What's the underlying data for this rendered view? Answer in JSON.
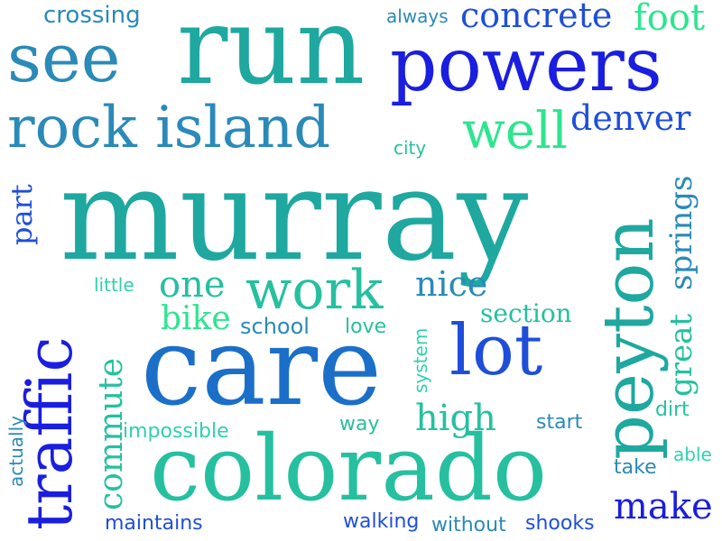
{
  "colors": {
    "deep_blue": "#1a1ee0",
    "royal_blue": "#1f4fd8",
    "mid_blue": "#1b6fc8",
    "steel_blue": "#2a8ab8",
    "teal": "#1ea8a0",
    "sea_green": "#26c0a0",
    "bright_green": "#2ee58f",
    "light_teal": "#2fd0b0"
  },
  "words": [
    {
      "text": "murray",
      "color": "teal"
    },
    {
      "text": "run",
      "color": "teal"
    },
    {
      "text": "care",
      "color": "mid_blue"
    },
    {
      "text": "colorado",
      "color": "sea_green"
    },
    {
      "text": "powers",
      "color": "deep_blue"
    },
    {
      "text": "peyton",
      "color": "teal"
    },
    {
      "text": "traffic",
      "color": "deep_blue"
    },
    {
      "text": "see",
      "color": "steel_blue"
    },
    {
      "text": "rock island",
      "color": "steel_blue"
    },
    {
      "text": "lot",
      "color": "royal_blue"
    },
    {
      "text": "work",
      "color": "sea_green"
    },
    {
      "text": "well",
      "color": "bright_green"
    },
    {
      "text": "concrete",
      "color": "royal_blue"
    },
    {
      "text": "foot",
      "color": "bright_green"
    },
    {
      "text": "denver",
      "color": "royal_blue"
    },
    {
      "text": "nice",
      "color": "steel_blue"
    },
    {
      "text": "one",
      "color": "sea_green"
    },
    {
      "text": "bike",
      "color": "bright_green"
    },
    {
      "text": "high",
      "color": "sea_green"
    },
    {
      "text": "make",
      "color": "deep_blue"
    },
    {
      "text": "springs",
      "color": "steel_blue"
    },
    {
      "text": "great",
      "color": "sea_green"
    },
    {
      "text": "commute",
      "color": "sea_green"
    },
    {
      "text": "part",
      "color": "royal_blue"
    },
    {
      "text": "section",
      "color": "sea_green"
    },
    {
      "text": "crossing",
      "color": "steel_blue"
    },
    {
      "text": "always",
      "color": "steel_blue"
    },
    {
      "text": "city",
      "color": "sea_green"
    },
    {
      "text": "little",
      "color": "light_teal"
    },
    {
      "text": "school",
      "color": "steel_blue"
    },
    {
      "text": "love",
      "color": "sea_green"
    },
    {
      "text": "system",
      "color": "light_teal"
    },
    {
      "text": "impossible",
      "color": "light_teal"
    },
    {
      "text": "way",
      "color": "sea_green"
    },
    {
      "text": "start",
      "color": "steel_blue"
    },
    {
      "text": "dirt",
      "color": "sea_green"
    },
    {
      "text": "able",
      "color": "light_teal"
    },
    {
      "text": "take",
      "color": "steel_blue"
    },
    {
      "text": "actually",
      "color": "steel_blue"
    },
    {
      "text": "maintains",
      "color": "royal_blue"
    },
    {
      "text": "walking",
      "color": "royal_blue"
    },
    {
      "text": "without",
      "color": "steel_blue"
    },
    {
      "text": "shooks",
      "color": "royal_blue"
    }
  ]
}
